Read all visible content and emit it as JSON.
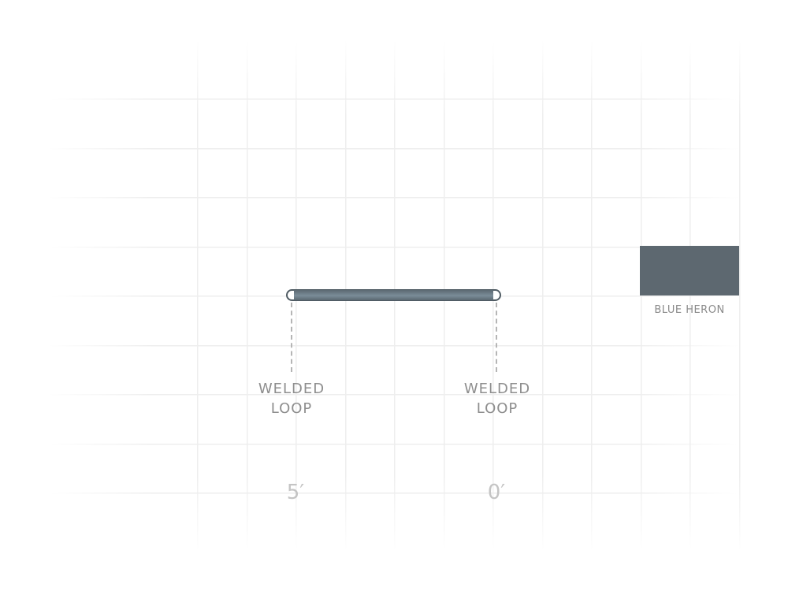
{
  "diagram": {
    "line_color": "#6b7b86",
    "markers": [
      {
        "label_line1": "WELDED",
        "label_line2": "LOOP"
      },
      {
        "label_line1": "WELDED",
        "label_line2": "LOOP"
      }
    ],
    "scale_ticks": [
      "5′",
      "0′"
    ]
  },
  "color_swatch": {
    "name": "BLUE HERON",
    "color": "#5d6870"
  }
}
